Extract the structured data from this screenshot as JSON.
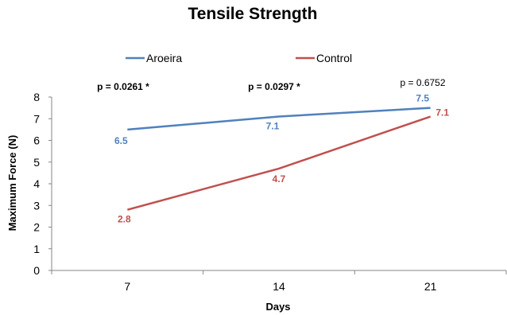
{
  "chart_data": {
    "type": "line",
    "title": "Tensile Strength",
    "xlabel": "Days",
    "ylabel": "Maximum Force (N)",
    "categories": [
      "7",
      "14",
      "21"
    ],
    "ylim": [
      0,
      8
    ],
    "yticks": [
      0,
      1,
      2,
      3,
      4,
      5,
      6,
      7,
      8
    ],
    "grid": false,
    "legend_position": "top",
    "series": [
      {
        "name": "Aroeira",
        "color": "#4f81bd",
        "values": [
          6.5,
          7.1,
          7.5
        ],
        "labels": [
          "6.5",
          "7.1",
          "7.5"
        ]
      },
      {
        "name": "Control",
        "color": "#c0504d",
        "values": [
          2.8,
          4.7,
          7.1
        ],
        "labels": [
          "2.8",
          "4.7",
          "7.1"
        ]
      }
    ],
    "annotations": [
      {
        "text": "p = 0.0261 *",
        "category": "7",
        "bold": true
      },
      {
        "text": "p = 0.0297 *",
        "category": "14",
        "bold": true
      },
      {
        "text": "p = 0.6752",
        "category": "21",
        "bold": false
      }
    ]
  }
}
